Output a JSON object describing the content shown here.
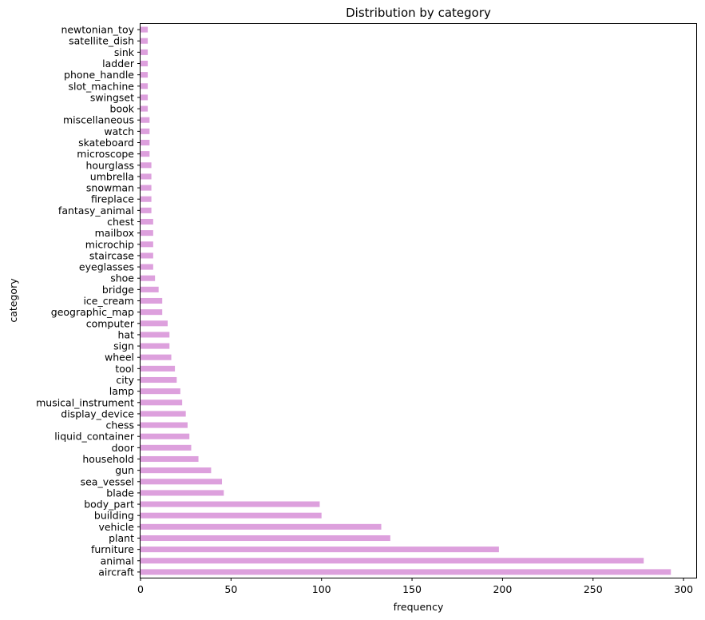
{
  "chart_data": {
    "type": "bar",
    "orientation": "horizontal",
    "title": "Distribution by category",
    "xlabel": "frequency",
    "ylabel": "category",
    "xlim": [
      0,
      307
    ],
    "xticks": [
      0,
      50,
      100,
      150,
      200,
      250,
      300
    ],
    "grid": false,
    "bar_color": "#dda0dd",
    "categories": [
      "aircraft",
      "animal",
      "furniture",
      "plant",
      "vehicle",
      "building",
      "body_part",
      "blade",
      "sea_vessel",
      "gun",
      "household",
      "door",
      "liquid_container",
      "chess",
      "display_device",
      "musical_instrument",
      "lamp",
      "city",
      "tool",
      "wheel",
      "sign",
      "hat",
      "computer",
      "geographic_map",
      "ice_cream",
      "bridge",
      "shoe",
      "eyeglasses",
      "staircase",
      "microchip",
      "mailbox",
      "chest",
      "fantasy_animal",
      "fireplace",
      "snowman",
      "umbrella",
      "hourglass",
      "microscope",
      "skateboard",
      "watch",
      "miscellaneous",
      "book",
      "swingset",
      "slot_machine",
      "phone_handle",
      "ladder",
      "sink",
      "satellite_dish",
      "newtonian_toy"
    ],
    "values": [
      293,
      278,
      198,
      138,
      133,
      100,
      99,
      46,
      45,
      39,
      32,
      28,
      27,
      26,
      25,
      23,
      22,
      20,
      19,
      17,
      16,
      16,
      15,
      12,
      12,
      10,
      8,
      7,
      7,
      7,
      7,
      7,
      6,
      6,
      6,
      6,
      6,
      5,
      5,
      5,
      5,
      4,
      4,
      4,
      4,
      4,
      4,
      4,
      4
    ]
  }
}
